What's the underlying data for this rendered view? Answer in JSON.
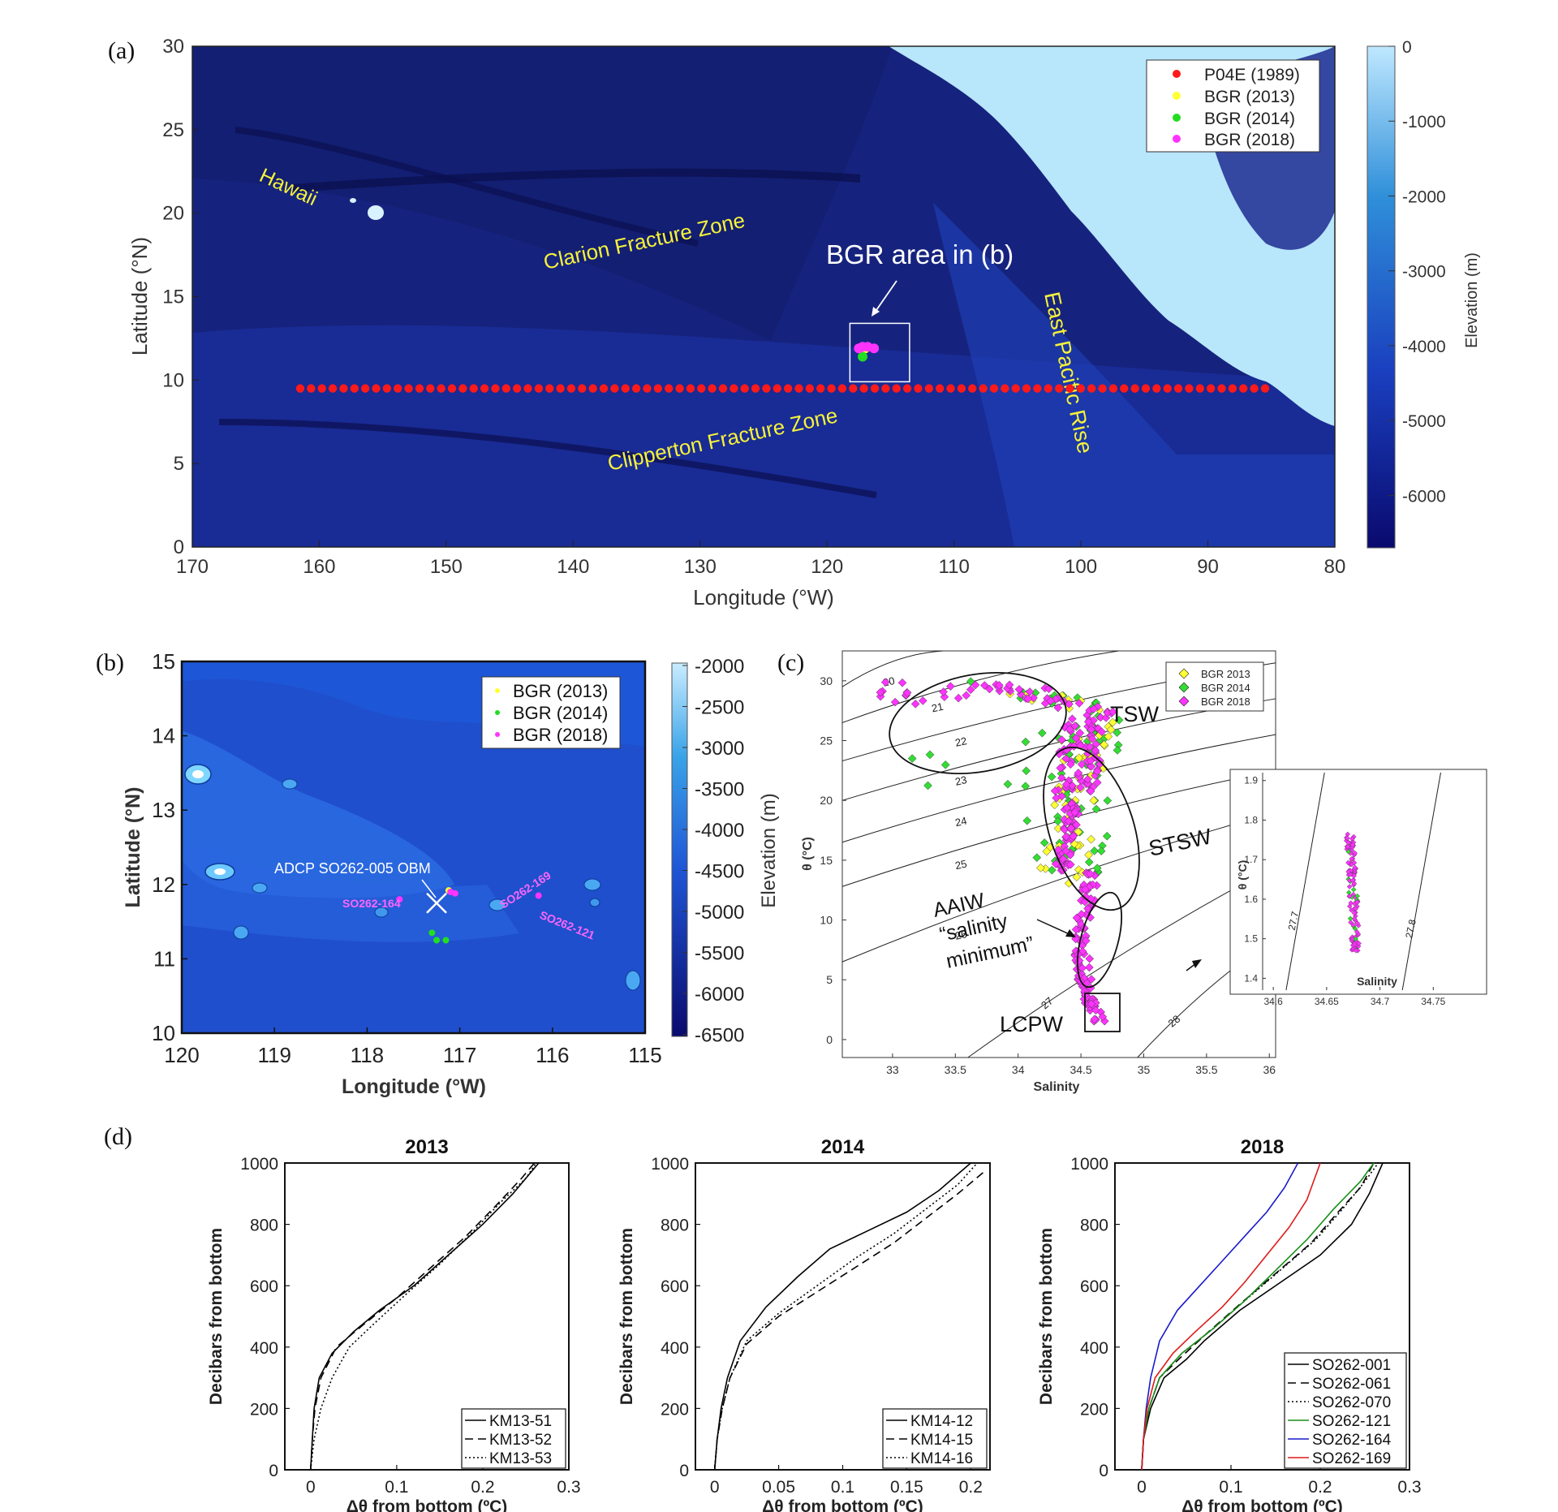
{
  "panels": {
    "a": "(a)",
    "b": "(b)",
    "c": "(c)",
    "d": "(d)"
  },
  "chart_data": [
    {
      "panel": "a",
      "type": "scatter",
      "map": true,
      "xlabel": "Longitude (°W)",
      "ylabel": "Latitude (°N)",
      "xlim": [
        170,
        80
      ],
      "ylim": [
        0,
        30
      ],
      "xticks": [
        170,
        160,
        150,
        140,
        130,
        120,
        110,
        100,
        90,
        80
      ],
      "yticks": [
        0,
        5,
        10,
        15,
        20,
        25,
        30
      ],
      "colorbar": {
        "label": "Elevation (m)",
        "ticks": [
          0,
          -1000,
          -2000,
          -3000,
          -4000,
          -5000,
          -6000
        ]
      },
      "annotations": [
        "Hawaii",
        "Clarion Fracture Zone",
        "BGR area in (b)",
        "East Pacific Rise",
        "Clipperton Fracture Zone"
      ],
      "series": [
        {
          "name": "P04E (1989)",
          "color": "#ff1a1a",
          "lon_range": [
            161.5,
            85.5
          ],
          "lat": 9.5,
          "count": 90
        },
        {
          "name": "BGR (2013)",
          "color": "#ffff33",
          "points": [
            [
              117.0,
              11.9
            ]
          ]
        },
        {
          "name": "BGR (2014)",
          "color": "#22dd22",
          "points": [
            [
              117.2,
              11.4
            ]
          ]
        },
        {
          "name": "BGR (2018)",
          "color": "#ff33ff",
          "points": [
            [
              117.5,
              11.9
            ],
            [
              117.2,
              12.0
            ],
            [
              116.8,
              12.0
            ],
            [
              116.3,
              11.9
            ]
          ]
        }
      ],
      "box": {
        "lon": [
          118.2,
          113.5
        ],
        "lat": [
          9.9,
          13.4
        ]
      }
    },
    {
      "panel": "b",
      "type": "scatter",
      "map": true,
      "xlabel": "Longitude (°W)",
      "ylabel": "Latitude (°N)",
      "xlim": [
        120,
        115
      ],
      "ylim": [
        10,
        15
      ],
      "xticks": [
        120,
        119,
        118,
        117,
        116,
        115
      ],
      "yticks": [
        10,
        11,
        12,
        13,
        14,
        15
      ],
      "colorbar": {
        "label": "Elevation (m)",
        "ticks": [
          -2000,
          -2500,
          -3000,
          -3500,
          -4000,
          -4500,
          -5000,
          -5500,
          -6000,
          -6500
        ]
      },
      "annotations": {
        "adcp": "ADCP SO262-005 OBM",
        "s164": "SO262-164",
        "s169": "SO262-169",
        "s121": "SO262-121"
      },
      "series": [
        {
          "name": "BGR (2013)",
          "color": "#ffff33",
          "points": [
            [
              117.12,
              11.92
            ]
          ]
        },
        {
          "name": "BGR (2014)",
          "color": "#22dd22",
          "points": [
            [
              117.3,
              11.35
            ],
            [
              117.25,
              11.25
            ],
            [
              117.15,
              11.25
            ]
          ]
        },
        {
          "name": "BGR (2018)",
          "color": "#ff33ff",
          "points": [
            [
              117.1,
              11.9
            ],
            [
              117.05,
              11.88
            ],
            [
              116.15,
              11.85
            ],
            [
              117.65,
              11.8
            ]
          ]
        }
      ],
      "adcp_position": [
        117.25,
        11.75
      ]
    },
    {
      "panel": "c",
      "type": "scatter",
      "xlabel": "Salinity",
      "ylabel": "θ (°C)",
      "xlim": [
        32.6,
        36.05
      ],
      "ylim": [
        -1.5,
        32.5
      ],
      "xticks": [
        33,
        33.5,
        34,
        34.5,
        35,
        35.5,
        36
      ],
      "yticks": [
        0,
        5,
        10,
        15,
        20,
        25,
        30
      ],
      "isopycnals": [
        20,
        21,
        22,
        23,
        24,
        25,
        26,
        27,
        28
      ],
      "water_masses": [
        "TSW",
        "STSW",
        "AAIW",
        "“salinity",
        "minimum”",
        "LCPW"
      ],
      "series": [
        {
          "name": "BGR 2013",
          "color": "#ffff33"
        },
        {
          "name": "BGR 2014",
          "color": "#33dd33"
        },
        {
          "name": "BGR 2018",
          "color": "#ff33ff"
        }
      ],
      "inset": {
        "xlabel": "Salinity",
        "ylabel": "θ (°C)",
        "xlim": [
          34.59,
          34.8
        ],
        "ylim": [
          1.37,
          1.92
        ],
        "xticks": [
          34.6,
          34.65,
          34.7,
          34.75
        ],
        "yticks": [
          1.4,
          1.5,
          1.6,
          1.7,
          1.8,
          1.9
        ],
        "isopycnals": [
          "27.7",
          "27.8"
        ]
      }
    },
    {
      "panel": "d",
      "type": "line",
      "title": "2013",
      "xlabel": "Δθ from bottom (ºC)",
      "ylabel": "Decibars from bottom",
      "xlim": [
        -0.03,
        0.3
      ],
      "ylim": [
        0,
        1000
      ],
      "xticks": [
        0,
        0.1,
        0.2,
        0.3
      ],
      "yticks": [
        0,
        200,
        400,
        600,
        800,
        1000
      ],
      "series": [
        {
          "name": "KM13-51",
          "style": "solid",
          "color": "#000000",
          "points": [
            [
              0,
              0
            ],
            [
              0.002,
              100
            ],
            [
              0.004,
              200
            ],
            [
              0.01,
              300
            ],
            [
              0.025,
              380
            ],
            [
              0.05,
              450
            ],
            [
              0.08,
              520
            ],
            [
              0.12,
              600
            ],
            [
              0.16,
              700
            ],
            [
              0.2,
              800
            ],
            [
              0.235,
              900
            ],
            [
              0.265,
              1000
            ]
          ]
        },
        {
          "name": "KM13-52",
          "style": "dashed",
          "color": "#000000",
          "points": [
            [
              0,
              0
            ],
            [
              0.002,
              100
            ],
            [
              0.005,
              200
            ],
            [
              0.012,
              300
            ],
            [
              0.03,
              400
            ],
            [
              0.06,
              470
            ],
            [
              0.1,
              560
            ],
            [
              0.14,
              660
            ],
            [
              0.18,
              760
            ],
            [
              0.215,
              860
            ],
            [
              0.245,
              950
            ],
            [
              0.26,
              1000
            ]
          ]
        },
        {
          "name": "KM13-53",
          "style": "dotted",
          "color": "#000000",
          "points": [
            [
              0,
              0
            ],
            [
              0.004,
              100
            ],
            [
              0.012,
              200
            ],
            [
              0.025,
              300
            ],
            [
              0.045,
              400
            ],
            [
              0.075,
              480
            ],
            [
              0.11,
              570
            ],
            [
              0.15,
              670
            ],
            [
              0.19,
              780
            ],
            [
              0.22,
              870
            ],
            [
              0.25,
              950
            ],
            [
              0.262,
              1000
            ]
          ]
        }
      ]
    },
    {
      "panel": "d",
      "type": "line",
      "title": "2014",
      "xlabel": "Δθ from bottom (ºC)",
      "ylabel": "Decibars from bottom",
      "xlim": [
        -0.015,
        0.215
      ],
      "ylim": [
        0,
        1000
      ],
      "xticks": [
        0,
        0.05,
        0.1,
        0.15,
        0.2
      ],
      "xticklabels": [
        "0",
        "0.05",
        "0.1",
        "0.15",
        "0.2"
      ],
      "yticks": [
        0,
        200,
        400,
        600,
        800,
        1000
      ],
      "series": [
        {
          "name": "KM14-12",
          "style": "solid",
          "color": "#000000",
          "points": [
            [
              0,
              0
            ],
            [
              0.002,
              100
            ],
            [
              0.005,
              200
            ],
            [
              0.01,
              300
            ],
            [
              0.02,
              420
            ],
            [
              0.04,
              530
            ],
            [
              0.065,
              630
            ],
            [
              0.09,
              720
            ],
            [
              0.12,
              780
            ],
            [
              0.15,
              840
            ],
            [
              0.175,
              910
            ],
            [
              0.2,
              1000
            ]
          ]
        },
        {
          "name": "KM14-15",
          "style": "dashed",
          "color": "#000000",
          "points": [
            [
              0,
              0
            ],
            [
              0.002,
              100
            ],
            [
              0.006,
              200
            ],
            [
              0.012,
              300
            ],
            [
              0.025,
              410
            ],
            [
              0.05,
              500
            ],
            [
              0.08,
              580
            ],
            [
              0.11,
              660
            ],
            [
              0.14,
              740
            ],
            [
              0.165,
              820
            ],
            [
              0.19,
              900
            ],
            [
              0.21,
              970
            ]
          ]
        },
        {
          "name": "KM14-16",
          "style": "dotted",
          "color": "#000000",
          "points": [
            [
              0,
              0
            ],
            [
              0.002,
              100
            ],
            [
              0.006,
              200
            ],
            [
              0.012,
              300
            ],
            [
              0.025,
              420
            ],
            [
              0.05,
              510
            ],
            [
              0.08,
              600
            ],
            [
              0.11,
              690
            ],
            [
              0.14,
              770
            ],
            [
              0.165,
              850
            ],
            [
              0.19,
              930
            ],
            [
              0.205,
              1000
            ]
          ]
        }
      ]
    },
    {
      "panel": "d",
      "type": "line",
      "title": "2018",
      "xlabel": "Δθ from bottom (ºC)",
      "ylabel": "Decibars from bottom",
      "xlim": [
        -0.03,
        0.3
      ],
      "ylim": [
        0,
        1000
      ],
      "xticks": [
        0,
        0.1,
        0.2,
        0.3
      ],
      "yticks": [
        0,
        200,
        400,
        600,
        800,
        1000
      ],
      "series": [
        {
          "name": "SO262-001",
          "style": "solid",
          "color": "#000000",
          "points": [
            [
              0,
              0
            ],
            [
              0.002,
              100
            ],
            [
              0.01,
              200
            ],
            [
              0.025,
              300
            ],
            [
              0.05,
              360
            ],
            [
              0.07,
              420
            ],
            [
              0.11,
              520
            ],
            [
              0.16,
              620
            ],
            [
              0.2,
              700
            ],
            [
              0.235,
              800
            ],
            [
              0.255,
              900
            ],
            [
              0.27,
              1000
            ]
          ]
        },
        {
          "name": "SO262-061",
          "style": "dashed",
          "color": "#000000",
          "points": [
            [
              0,
              0
            ],
            [
              0.002,
              100
            ],
            [
              0.008,
              200
            ],
            [
              0.02,
              300
            ],
            [
              0.045,
              370
            ],
            [
              0.075,
              450
            ],
            [
              0.11,
              540
            ],
            [
              0.15,
              640
            ],
            [
              0.19,
              740
            ],
            [
              0.22,
              840
            ],
            [
              0.245,
              920
            ],
            [
              0.26,
              1000
            ]
          ]
        },
        {
          "name": "SO262-070",
          "style": "dotted",
          "color": "#000000",
          "points": [
            [
              0,
              0
            ],
            [
              0.002,
              100
            ],
            [
              0.008,
              200
            ],
            [
              0.02,
              300
            ],
            [
              0.045,
              380
            ],
            [
              0.08,
              460
            ],
            [
              0.115,
              550
            ],
            [
              0.155,
              650
            ],
            [
              0.195,
              750
            ],
            [
              0.225,
              850
            ],
            [
              0.25,
              940
            ],
            [
              0.265,
              1000
            ]
          ]
        },
        {
          "name": "SO262-121",
          "style": "solid",
          "color": "#1a8f1a",
          "points": [
            [
              0,
              0
            ],
            [
              0.002,
              100
            ],
            [
              0.008,
              200
            ],
            [
              0.02,
              300
            ],
            [
              0.045,
              380
            ],
            [
              0.08,
              460
            ],
            [
              0.115,
              550
            ],
            [
              0.15,
              650
            ],
            [
              0.185,
              750
            ],
            [
              0.215,
              850
            ],
            [
              0.245,
              940
            ],
            [
              0.26,
              1000
            ]
          ]
        },
        {
          "name": "SO262-164",
          "style": "solid",
          "color": "#1a1acc",
          "points": [
            [
              0,
              0
            ],
            [
              0.002,
              100
            ],
            [
              0.005,
              200
            ],
            [
              0.01,
              300
            ],
            [
              0.02,
              420
            ],
            [
              0.04,
              520
            ],
            [
              0.065,
              600
            ],
            [
              0.09,
              680
            ],
            [
              0.115,
              760
            ],
            [
              0.14,
              840
            ],
            [
              0.16,
              920
            ],
            [
              0.175,
              1000
            ]
          ]
        },
        {
          "name": "SO262-169",
          "style": "solid",
          "color": "#dd1a1a",
          "points": [
            [
              0,
              0
            ],
            [
              0.002,
              100
            ],
            [
              0.006,
              200
            ],
            [
              0.015,
              300
            ],
            [
              0.035,
              380
            ],
            [
              0.06,
              450
            ],
            [
              0.09,
              530
            ],
            [
              0.115,
              610
            ],
            [
              0.14,
              700
            ],
            [
              0.165,
              790
            ],
            [
              0.185,
              880
            ],
            [
              0.2,
              1000
            ]
          ]
        }
      ]
    }
  ]
}
